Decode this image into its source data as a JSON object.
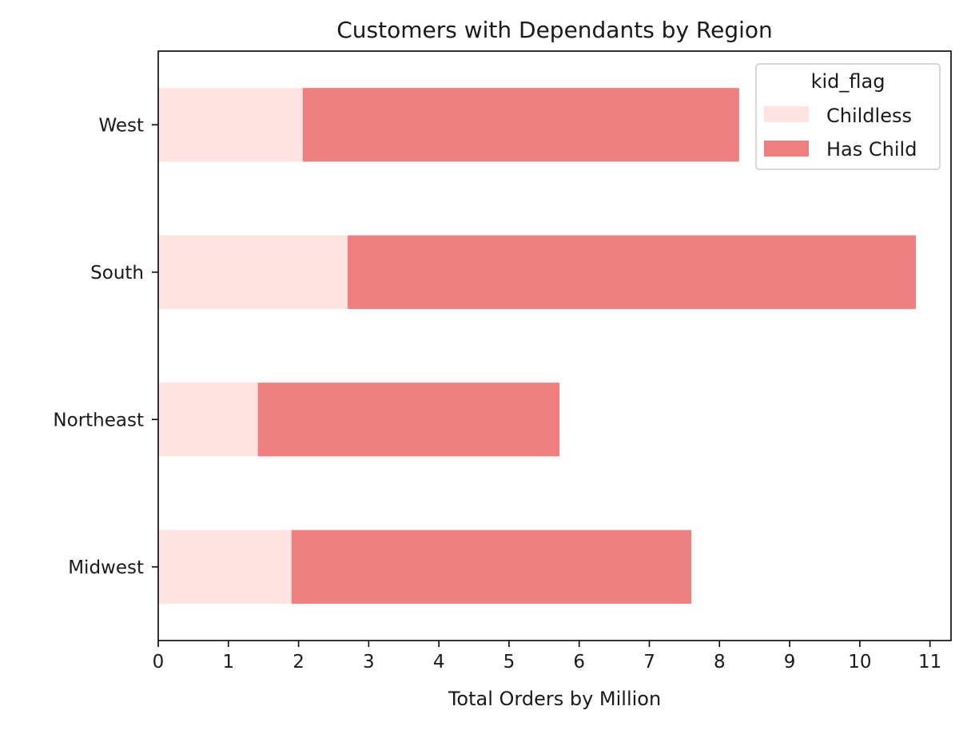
{
  "chart_data": {
    "type": "bar",
    "orientation": "horizontal",
    "stacked": true,
    "title": "Customers with Dependants by Region",
    "xlabel": "Total Orders by Million",
    "ylabel": "",
    "xlim": [
      0,
      11.3
    ],
    "xticks": [
      0,
      1,
      2,
      3,
      4,
      5,
      6,
      7,
      8,
      9,
      10,
      11
    ],
    "categories": [
      "Midwest",
      "Northeast",
      "South",
      "West"
    ],
    "series": [
      {
        "name": "Childless",
        "values": [
          1.9,
          1.42,
          2.7,
          2.06
        ],
        "color": "#ffe4e1"
      },
      {
        "name": "Has Child",
        "values": [
          5.7,
          4.3,
          8.1,
          6.22
        ],
        "color": "#f08080"
      }
    ],
    "legend": {
      "title": "kid_flag",
      "placement": "top-right"
    },
    "grid": false
  }
}
